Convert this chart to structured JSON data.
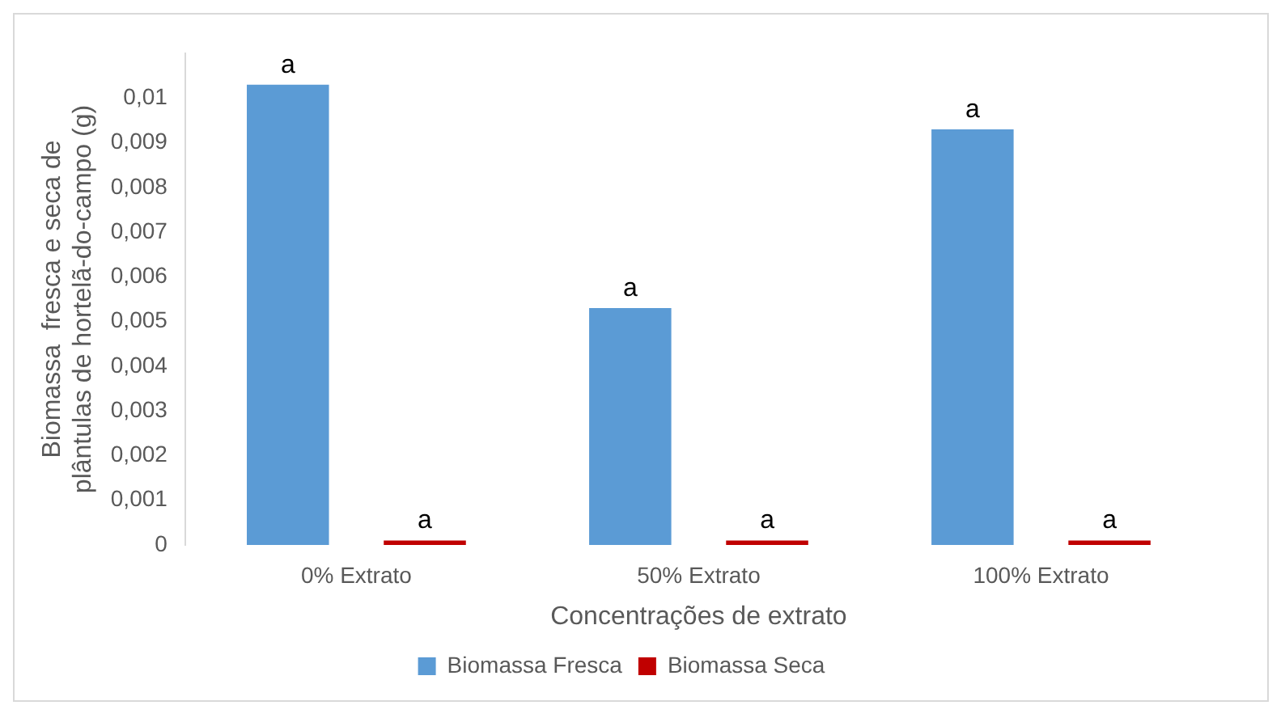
{
  "chart_data": {
    "type": "bar",
    "xlabel": "Concentrações de extrato",
    "ylabel": "Biomassa  fresca e seca de plântulas de hortelã-do-campo (g)",
    "categories": [
      "0% Extrato",
      "50% Extrato",
      "100% Extrato"
    ],
    "series": [
      {
        "name": "Biomassa Fresca",
        "color": "#5b9bd5",
        "values": [
          0.0103,
          0.0053,
          0.0093
        ],
        "value_labels": [
          "a",
          "a",
          "a"
        ]
      },
      {
        "name": "Biomassa Seca",
        "color": "#c00000",
        "values": [
          0.0001,
          0.0001,
          0.0001
        ],
        "value_labels": [
          "a",
          "a",
          "a"
        ]
      }
    ],
    "ylim": [
      0,
      0.011
    ],
    "yticks": [
      {
        "value": 0,
        "label": "0"
      },
      {
        "value": 0.001,
        "label": "0,001"
      },
      {
        "value": 0.002,
        "label": "0,002"
      },
      {
        "value": 0.003,
        "label": "0,003"
      },
      {
        "value": 0.004,
        "label": "0,004"
      },
      {
        "value": 0.005,
        "label": "0,005"
      },
      {
        "value": 0.006,
        "label": "0,006"
      },
      {
        "value": 0.007,
        "label": "0,007"
      },
      {
        "value": 0.008,
        "label": "0,008"
      },
      {
        "value": 0.009,
        "label": "0,009"
      },
      {
        "value": 0.01,
        "label": "0,01"
      }
    ],
    "grid": false,
    "legend": "bottom"
  }
}
